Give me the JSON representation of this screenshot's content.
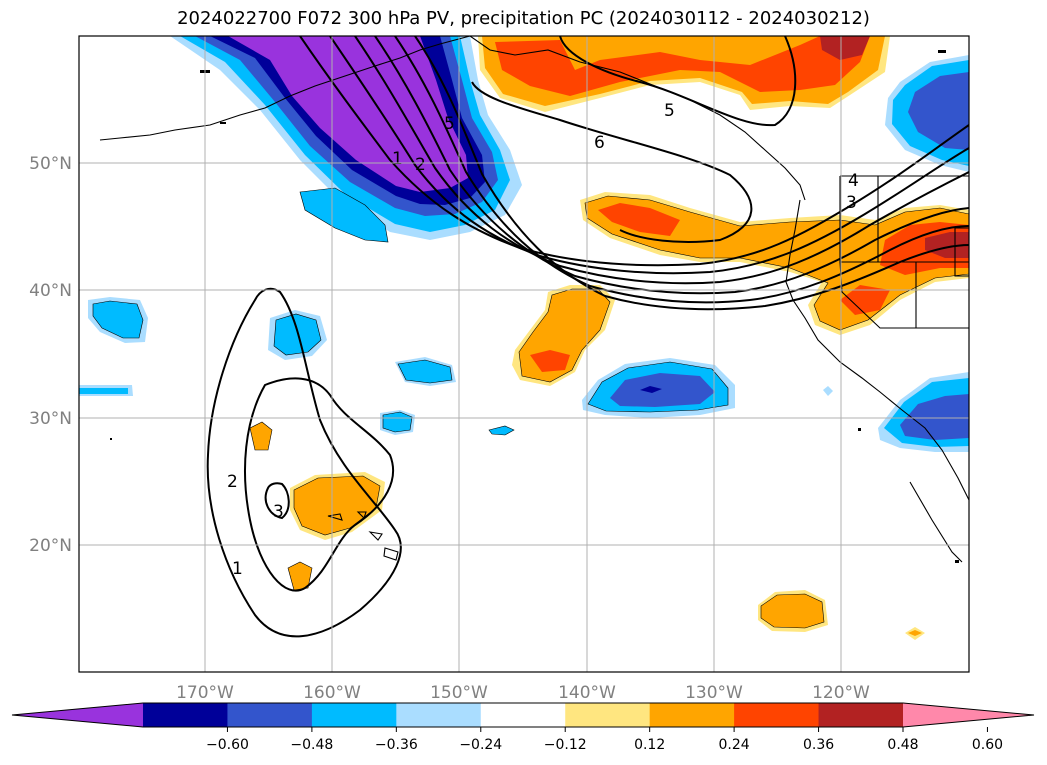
{
  "title": "2024022700 F072 300 hPa PV, precipitation PC (2024030112 - 2024030212)",
  "map": {
    "lon_labels": [
      "170°W",
      "160°W",
      "150°W",
      "140°W",
      "130°W",
      "120°W"
    ],
    "lat_labels": [
      "50°N",
      "40°N",
      "30°N",
      "20°N"
    ],
    "contour_labels": [
      "5",
      "1",
      "2",
      "6",
      "5",
      "4",
      "3",
      "2",
      "3",
      "1"
    ]
  },
  "colorbar": {
    "ticks": [
      "−0.60",
      "−0.48",
      "−0.36",
      "−0.24",
      "−0.12",
      "0.12",
      "0.24",
      "0.36",
      "0.48",
      "0.60"
    ],
    "colors": [
      "#9933dd",
      "#000099",
      "#3355cc",
      "#00bbff",
      "#aaddff",
      "#ffffff",
      "#ffe680",
      "#ffa500",
      "#ff4400",
      "#b22222",
      "#ff88aa"
    ]
  },
  "colors": {
    "precip_fill": "#ffa500",
    "precip_strong": "#ff4400",
    "precip_max": "#b22222",
    "neg_light": "#aaddff",
    "neg_mid": "#00bbff",
    "neg_strong": "#3355cc",
    "neg_dark": "#000099",
    "neg_max": "#9933dd"
  }
}
